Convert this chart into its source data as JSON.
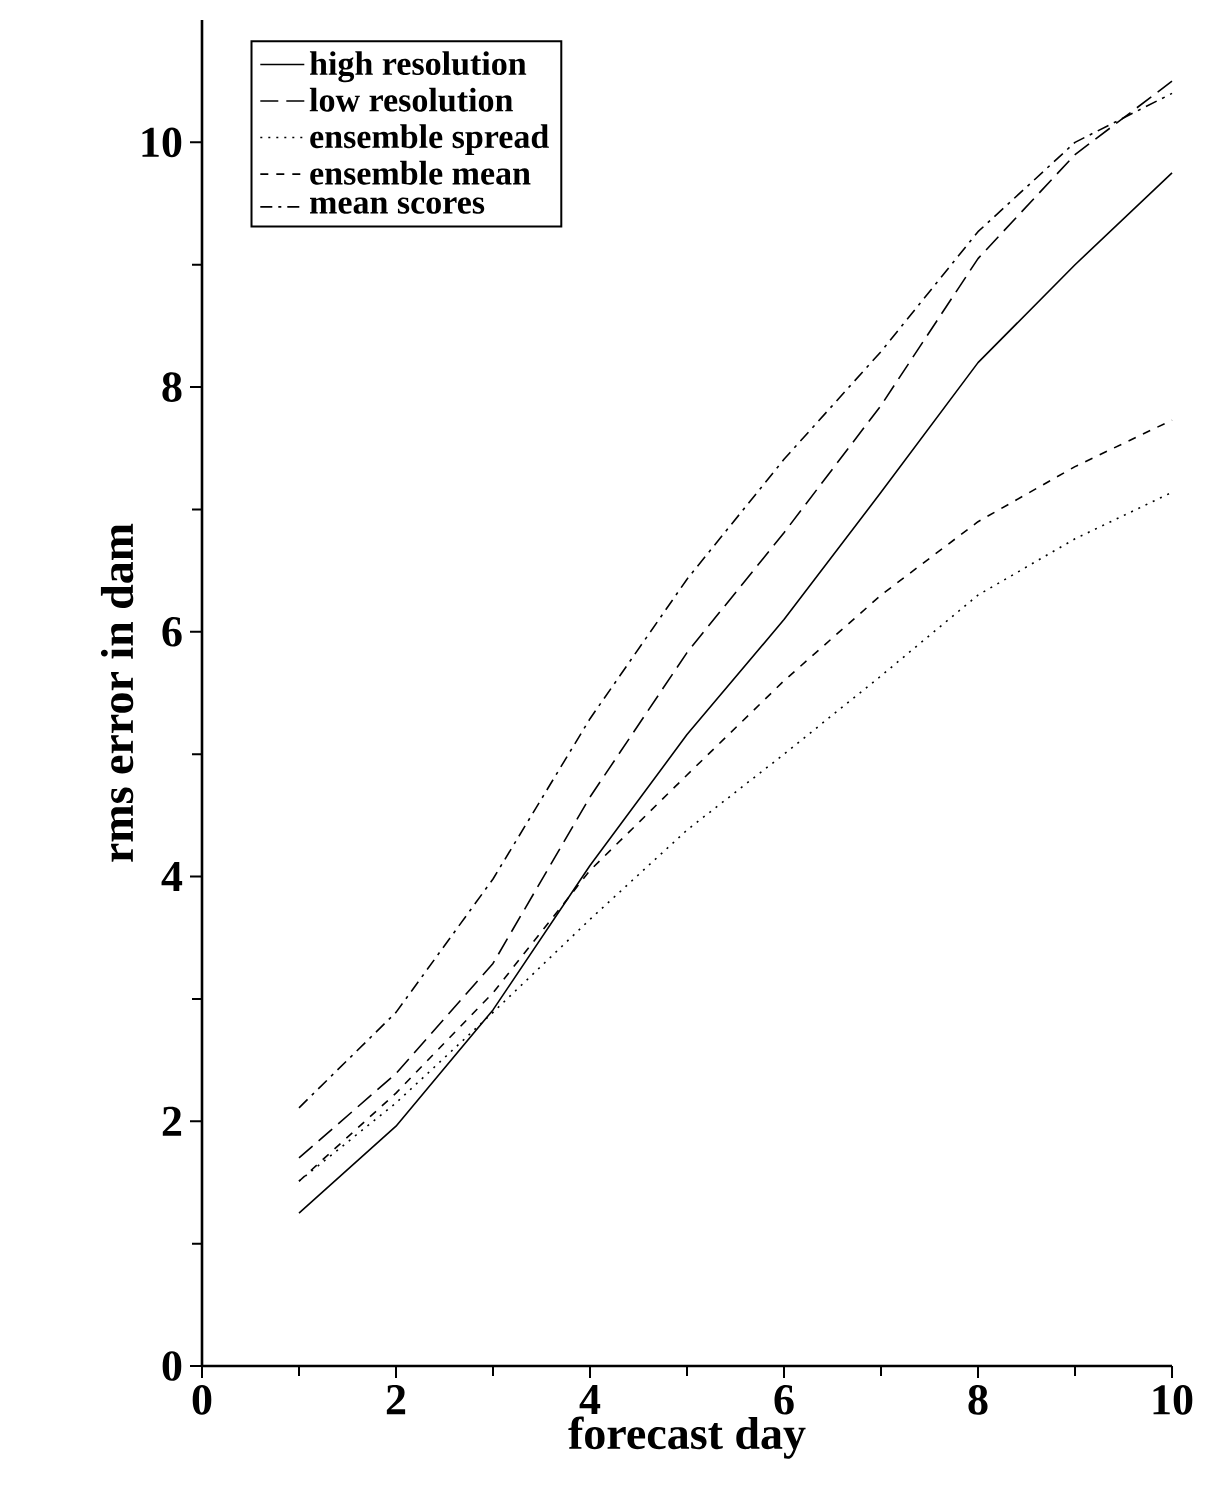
{
  "chart_data": {
    "type": "line",
    "xlabel": "forecast day",
    "ylabel": "rms error in dam",
    "x": [
      1,
      2,
      3,
      4,
      5,
      6,
      7,
      8,
      9,
      10
    ],
    "xlim": [
      0,
      10
    ],
    "ylim": [
      0,
      11
    ],
    "xticks": [
      0,
      2,
      4,
      6,
      8,
      10
    ],
    "yticks": [
      0,
      2,
      4,
      6,
      8,
      10
    ],
    "grid": false,
    "legend": "top left",
    "marker": "none",
    "series": [
      {
        "name": "high resolution",
        "color": "#000000",
        "line_style": "solid",
        "values": [
          1.25,
          1.96,
          2.91,
          4.09,
          5.16,
          6.1,
          7.14,
          8.2,
          9.0,
          9.75
        ]
      },
      {
        "name": "low resolution",
        "color": "#000000",
        "line_style": "longdashed",
        "values": [
          1.7,
          2.39,
          3.29,
          4.65,
          5.83,
          6.81,
          7.85,
          9.05,
          9.9,
          10.5
        ]
      },
      {
        "name": "ensemble spread",
        "color": "#000000",
        "line_style": "dotted",
        "values": [
          1.51,
          2.15,
          2.89,
          3.65,
          4.38,
          5.0,
          5.64,
          6.3,
          6.76,
          7.14
        ]
      },
      {
        "name": "ensemble mean",
        "color": "#000000",
        "line_style": "dashed",
        "values": [
          1.51,
          2.23,
          3.05,
          4.05,
          4.83,
          5.6,
          6.3,
          6.9,
          7.35,
          7.73
        ]
      },
      {
        "name": "mean scores",
        "color": "#000000",
        "line_style": "dashdot",
        "values": [
          2.11,
          2.89,
          3.98,
          5.29,
          6.43,
          7.41,
          8.29,
          9.27,
          10.0,
          10.4
        ]
      }
    ]
  }
}
